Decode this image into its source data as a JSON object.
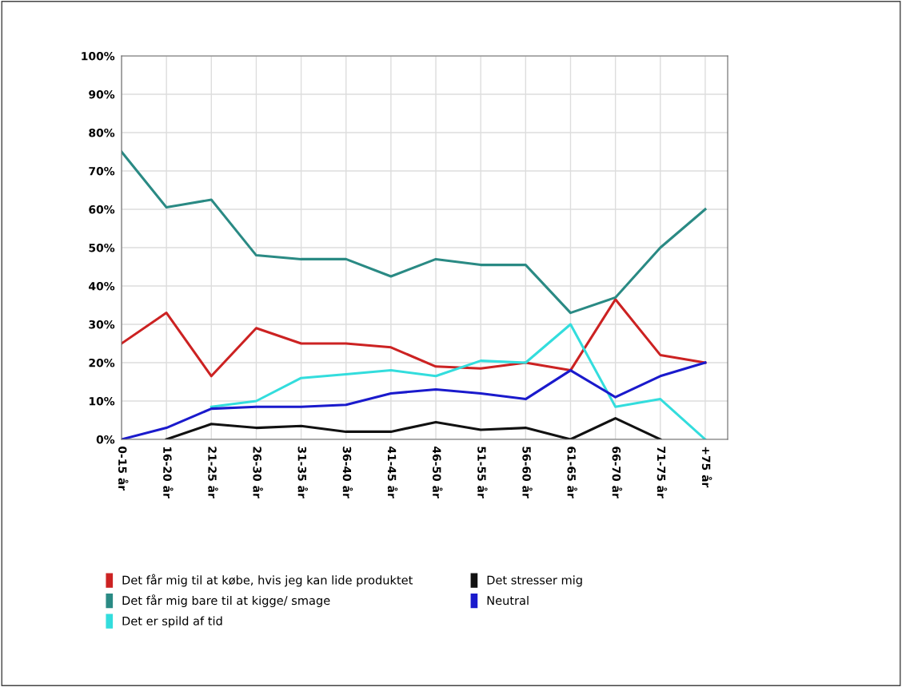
{
  "chart_data": {
    "type": "line",
    "categories": [
      "0-15 år",
      "16-20 år",
      "21-25 år",
      "26-30 år",
      "31-35 år",
      "36-40 år",
      "41-45 år",
      "46-50 år",
      "51-55 år",
      "56-60 år",
      "61-65 år",
      "66-70 år",
      "71-75 år",
      "+75 år"
    ],
    "series": [
      {
        "name": "Det får mig til at købe, hvis jeg kan lide produktet",
        "color": "#cc2222",
        "values": [
          25,
          33,
          16.5,
          29,
          25,
          25,
          24,
          19,
          18.5,
          20,
          18,
          36.5,
          22,
          20
        ]
      },
      {
        "name": "Det får mig bare til at kigge/ smage",
        "color": "#2a8a84",
        "values": [
          75,
          60.5,
          62.5,
          48,
          47,
          47,
          42.5,
          47,
          45.5,
          45.5,
          33,
          37,
          50,
          60
        ]
      },
      {
        "name": "Det er spild af tid",
        "color": "#33dddd",
        "values": [
          null,
          null,
          8.5,
          10,
          16,
          17,
          18,
          16.5,
          20.5,
          20,
          30,
          8.5,
          10.5,
          0
        ]
      },
      {
        "name": "Det stresser mig",
        "color": "#111111",
        "values": [
          null,
          0,
          4,
          3,
          3.5,
          2,
          2,
          4.5,
          2.5,
          3,
          0,
          5.5,
          0,
          null
        ]
      },
      {
        "name": "Neutral",
        "color": "#1a1acc",
        "values": [
          0,
          3,
          8,
          8.5,
          8.5,
          9,
          12,
          13,
          12,
          10.5,
          18,
          11,
          16.5,
          20
        ]
      }
    ],
    "ylim": [
      0,
      100
    ],
    "yticks": [
      {
        "value": 0,
        "label": "0%"
      },
      {
        "value": 10,
        "label": "10%"
      },
      {
        "value": 20,
        "label": "20%"
      },
      {
        "value": 30,
        "label": "30%"
      },
      {
        "value": 40,
        "label": "40%"
      },
      {
        "value": 50,
        "label": "50%"
      },
      {
        "value": 60,
        "label": "60%"
      },
      {
        "value": 70,
        "label": "70%"
      },
      {
        "value": 80,
        "label": "80%"
      },
      {
        "value": 90,
        "label": "90%"
      },
      {
        "value": 100,
        "label": "100%"
      }
    ],
    "grid": true,
    "legend": "bottom",
    "marker": "none",
    "line_style": "solid"
  }
}
